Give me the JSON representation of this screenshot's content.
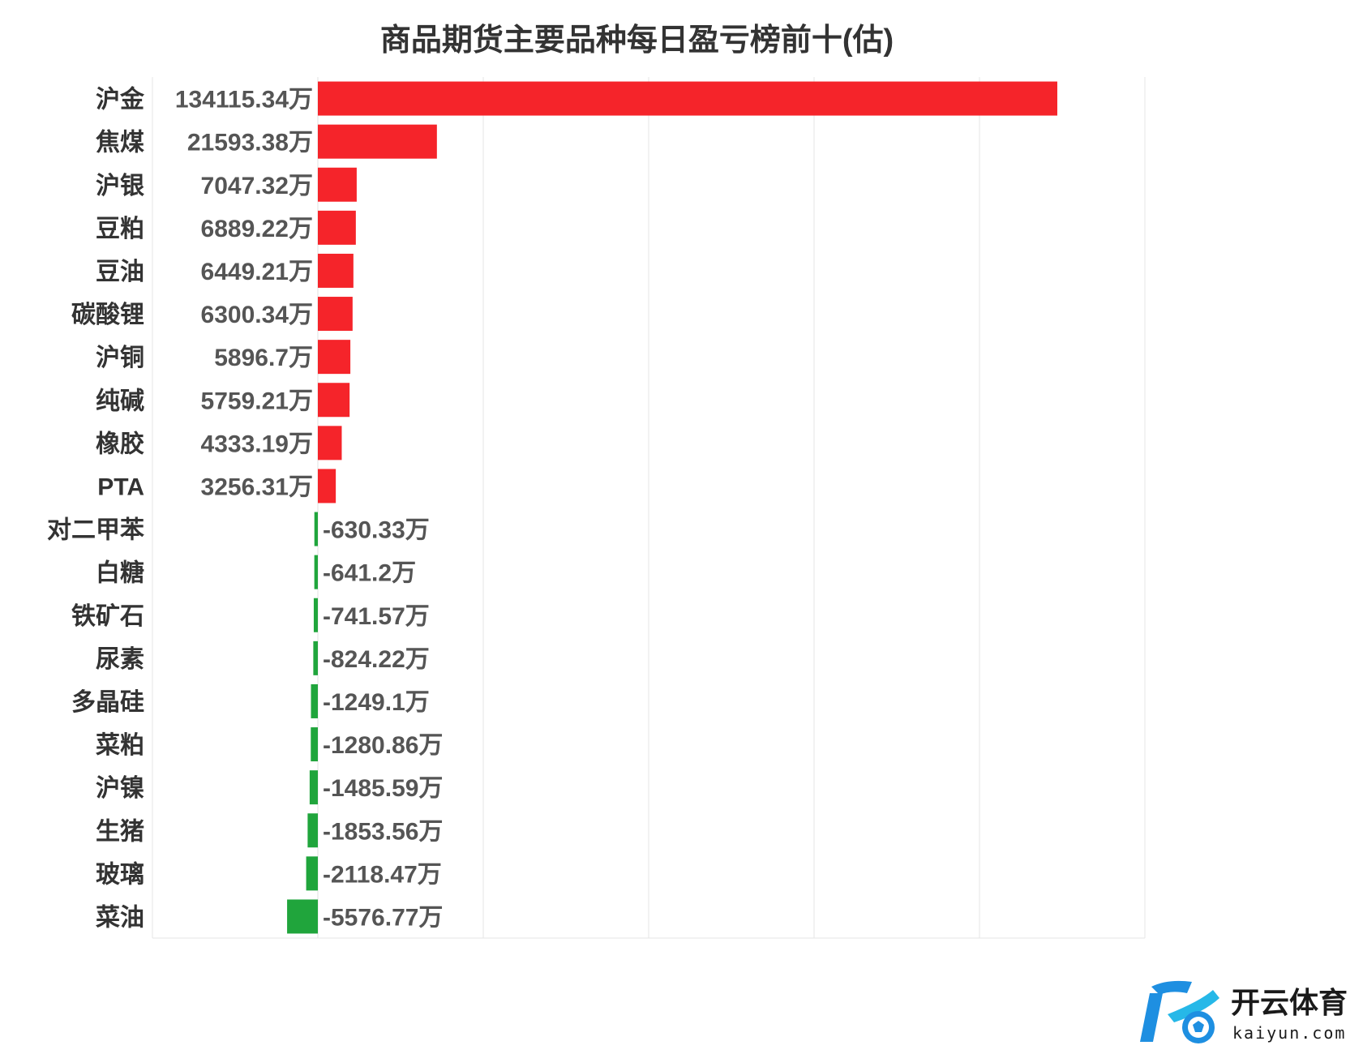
{
  "chart_data": {
    "type": "bar",
    "orientation": "horizontal",
    "title": "商品期货主要品种每日盈亏榜前十(估)",
    "unit_suffix": "万",
    "categories": [
      "沪金",
      "焦煤",
      "沪银",
      "豆粕",
      "豆油",
      "碳酸锂",
      "沪铜",
      "纯碱",
      "橡胶",
      "PTA",
      "对二甲苯",
      "白糖",
      "铁矿石",
      "尿素",
      "多晶硅",
      "菜粕",
      "沪镍",
      "生猪",
      "玻璃",
      "菜油"
    ],
    "values": [
      134115.34,
      21593.38,
      7047.32,
      6889.22,
      6449.21,
      6300.34,
      5896.7,
      5759.21,
      4333.19,
      3256.31,
      -630.33,
      -641.2,
      -741.57,
      -824.22,
      -1249.1,
      -1280.86,
      -1485.59,
      -1853.56,
      -2118.47,
      -5576.77
    ],
    "value_labels": [
      "134115.34万",
      "21593.38万",
      "7047.32万",
      "6889.22万",
      "6449.21万",
      "6300.34万",
      "5896.7万",
      "5759.21万",
      "4333.19万",
      "3256.31万",
      "-630.33万",
      "-641.2万",
      "-741.57万",
      "-824.22万",
      "-1249.1万",
      "-1280.86万",
      "-1485.59万",
      "-1853.56万",
      "-2118.47万",
      "-5576.77万"
    ],
    "xlim": [
      -30000,
      150000
    ],
    "grid": true,
    "positive_color": "#f5242a",
    "negative_color": "#20a53c"
  },
  "watermark": {
    "brand_text": "开云体育",
    "domain_text": "kaiyun.com",
    "accent_color": "#1e8fe1"
  }
}
